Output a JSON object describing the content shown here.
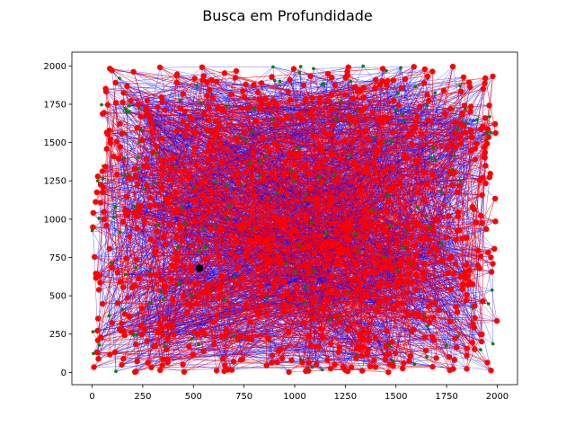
{
  "chart_data": {
    "type": "scatter",
    "title": "Busca em Profundidade",
    "xlabel": "",
    "ylabel": "",
    "xlim": [
      -100,
      2100
    ],
    "ylim": [
      -80,
      2090
    ],
    "xticks": [
      0,
      250,
      500,
      750,
      1000,
      1250,
      1500,
      1750,
      2000
    ],
    "yticks": [
      0,
      250,
      500,
      750,
      1000,
      1250,
      1500,
      1750,
      2000
    ],
    "grid": false,
    "legend": "none",
    "point_cloud": {
      "x_range": [
        0,
        2000
      ],
      "y_range": [
        0,
        2000
      ],
      "approx_visited_nodes": 900,
      "approx_unvisited_nodes": 200
    },
    "start_node": {
      "x": 530,
      "y": 680
    },
    "colors": {
      "visited_node": "#ff0000",
      "unvisited_node": "#008000",
      "graph_edge": "#0000ff",
      "search_path": "#ff0000",
      "start_node": "#000000"
    }
  }
}
